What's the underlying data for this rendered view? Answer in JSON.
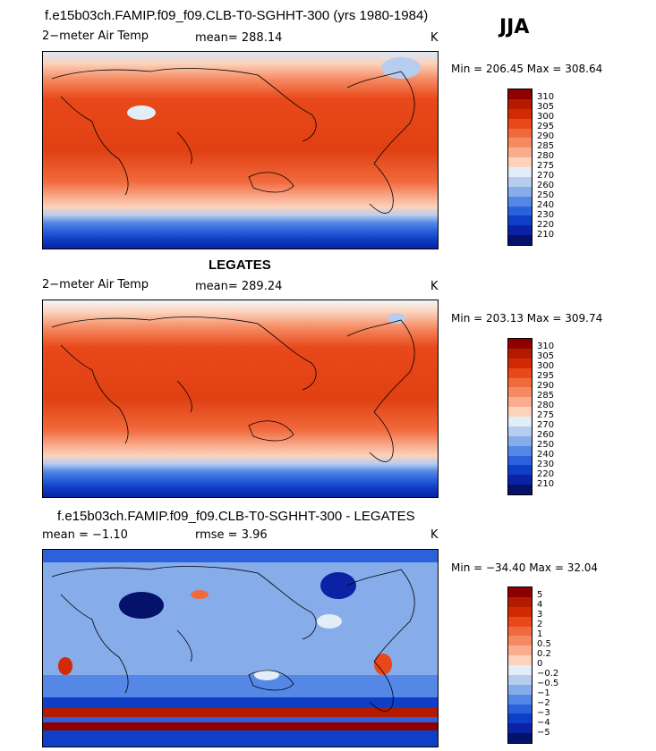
{
  "season": "JJA",
  "panels": [
    {
      "title": "f.e15b03ch.FAMIP.f09_f09.CLB-T0-SGHHT-300 (yrs 1980-1984)",
      "variable": "2−meter Air Temp",
      "stat": "mean= 288.14",
      "units": "K",
      "minmax": "Min = 206.45 Max = 308.64",
      "levels": [
        "310",
        "305",
        "300",
        "295",
        "290",
        "285",
        "280",
        "275",
        "270",
        "260",
        "250",
        "240",
        "230",
        "220",
        "210"
      ],
      "colors": [
        "#8e0000",
        "#b41a00",
        "#d22a05",
        "#e8481a",
        "#f16a3d",
        "#f58a62",
        "#f9ad8e",
        "#fcd2bb",
        "#e3edf8",
        "#b6cdf0",
        "#86acea",
        "#5487e6",
        "#2b62dc",
        "#0f3fc7",
        "#0a22a3",
        "#04126a"
      ]
    },
    {
      "title": "LEGATES",
      "variable": "2−meter Air Temp",
      "stat": "mean= 289.24",
      "units": "K",
      "minmax": "Min = 203.13 Max = 309.74",
      "levels": [
        "310",
        "305",
        "300",
        "295",
        "290",
        "285",
        "280",
        "275",
        "270",
        "260",
        "250",
        "240",
        "230",
        "220",
        "210"
      ],
      "colors": [
        "#8e0000",
        "#b41a00",
        "#d22a05",
        "#e8481a",
        "#f16a3d",
        "#f58a62",
        "#f9ad8e",
        "#fcd2bb",
        "#e3edf8",
        "#b6cdf0",
        "#86acea",
        "#5487e6",
        "#2b62dc",
        "#0f3fc7",
        "#0a22a3",
        "#04126a"
      ]
    },
    {
      "title": "f.e15b03ch.FAMIP.f09_f09.CLB-T0-SGHHT-300 - LEGATES",
      "variable": "mean =   −1.10",
      "stat": "rmse =    3.96",
      "units": "K",
      "minmax": "Min = −34.40 Max =  32.04",
      "levels": [
        "5",
        "4",
        "3",
        "2",
        "1",
        "0.5",
        "0.2",
        "0",
        "−0.2",
        "−0.5",
        "−1",
        "−2",
        "−3",
        "−4",
        "−5"
      ],
      "colors": [
        "#8e0000",
        "#b41a00",
        "#d22a05",
        "#e8481a",
        "#f16a3d",
        "#f58a62",
        "#f9ad8e",
        "#fcd2bb",
        "#e3edf8",
        "#b6cdf0",
        "#86acea",
        "#5487e6",
        "#2b62dc",
        "#0f3fc7",
        "#0a22a3",
        "#04126a"
      ]
    }
  ]
}
